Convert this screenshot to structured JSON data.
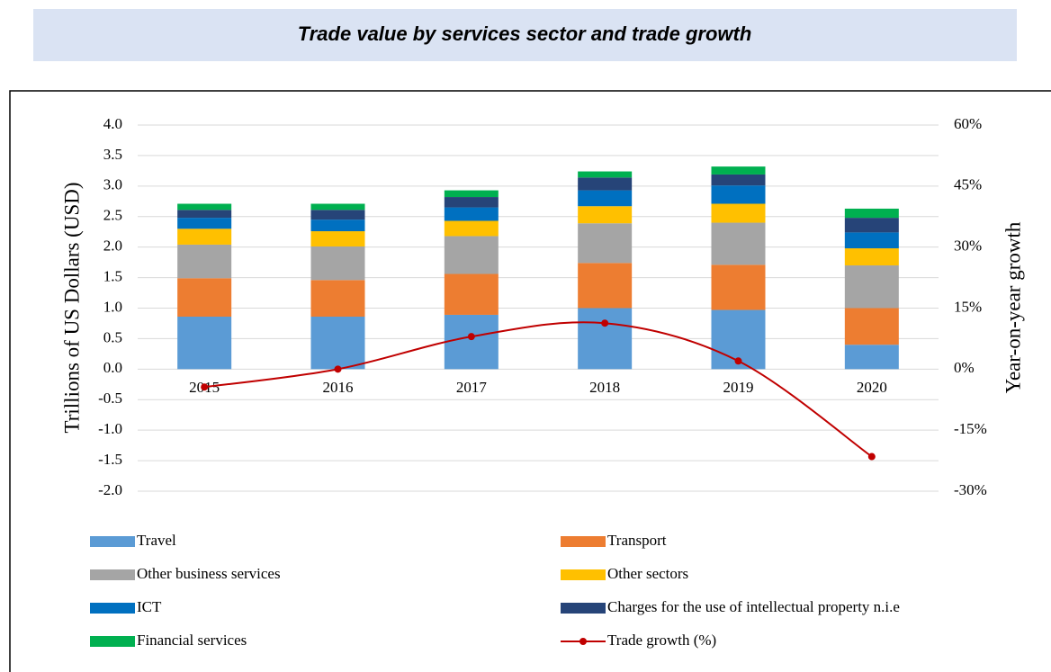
{
  "chart_data": {
    "type": "bar",
    "stacked": true,
    "title": "Trade value by services sector and trade growth",
    "ylabel": "Trillions of US Dollars (USD)",
    "y2label": "Year-on-year growth",
    "categories": [
      "2015",
      "2016",
      "2017",
      "2018",
      "2019",
      "2020"
    ],
    "series": [
      {
        "name": "Travel",
        "color": "#5b9bd5",
        "values": [
          0.86,
          0.86,
          0.89,
          1.0,
          0.97,
          0.4
        ]
      },
      {
        "name": "Transport",
        "color": "#ed7d31",
        "values": [
          0.63,
          0.6,
          0.67,
          0.74,
          0.74,
          0.6
        ]
      },
      {
        "name": "Other business services",
        "color": "#a5a5a5",
        "values": [
          0.55,
          0.55,
          0.62,
          0.65,
          0.69,
          0.7
        ]
      },
      {
        "name": "Other sectors",
        "color": "#ffc000",
        "values": [
          0.26,
          0.25,
          0.25,
          0.28,
          0.31,
          0.28
        ]
      },
      {
        "name": "ICT",
        "color": "#0070c0",
        "values": [
          0.18,
          0.19,
          0.22,
          0.26,
          0.3,
          0.26
        ]
      },
      {
        "name": "Charges for the use of intellectual property n.i.e",
        "color": "#264478",
        "values": [
          0.13,
          0.16,
          0.17,
          0.21,
          0.18,
          0.24
        ]
      },
      {
        "name": "Financial services",
        "color": "#00b050",
        "values": [
          0.1,
          0.1,
          0.11,
          0.1,
          0.13,
          0.15
        ]
      },
      {
        "name": "Trade growth (%)",
        "color": "#c00000",
        "type": "line",
        "axis": "y2",
        "values": [
          -4.4,
          0,
          8.0,
          11.3,
          2.0,
          -21.5
        ]
      }
    ],
    "ylim": [
      -2,
      4
    ],
    "yticks": [
      {
        "value": -2,
        "label": "-2.0"
      },
      -1.5,
      {
        "value": -1,
        "label": "-1.0"
      },
      -0.5,
      {
        "value": 0,
        "label": "0.0"
      },
      0.5,
      {
        "value": 1,
        "label": "1.0"
      },
      1.5,
      {
        "value": 2,
        "label": "2.0"
      },
      2.5,
      {
        "value": 3,
        "label": "3.0"
      },
      3.5,
      {
        "value": 4,
        "label": "4.0"
      }
    ],
    "y2lim": [
      -30,
      60
    ],
    "y2ticks": [
      {
        "value": -30,
        "label": "-30%"
      },
      {
        "value": -15,
        "label": "-15%"
      },
      {
        "value": 0,
        "label": "0%"
      },
      {
        "value": 15,
        "label": "15%"
      },
      {
        "value": 30,
        "label": "30%"
      },
      {
        "value": 45,
        "label": "45%"
      },
      {
        "value": 60,
        "label": "60%"
      }
    ],
    "grid": true,
    "legend": "bottom"
  }
}
